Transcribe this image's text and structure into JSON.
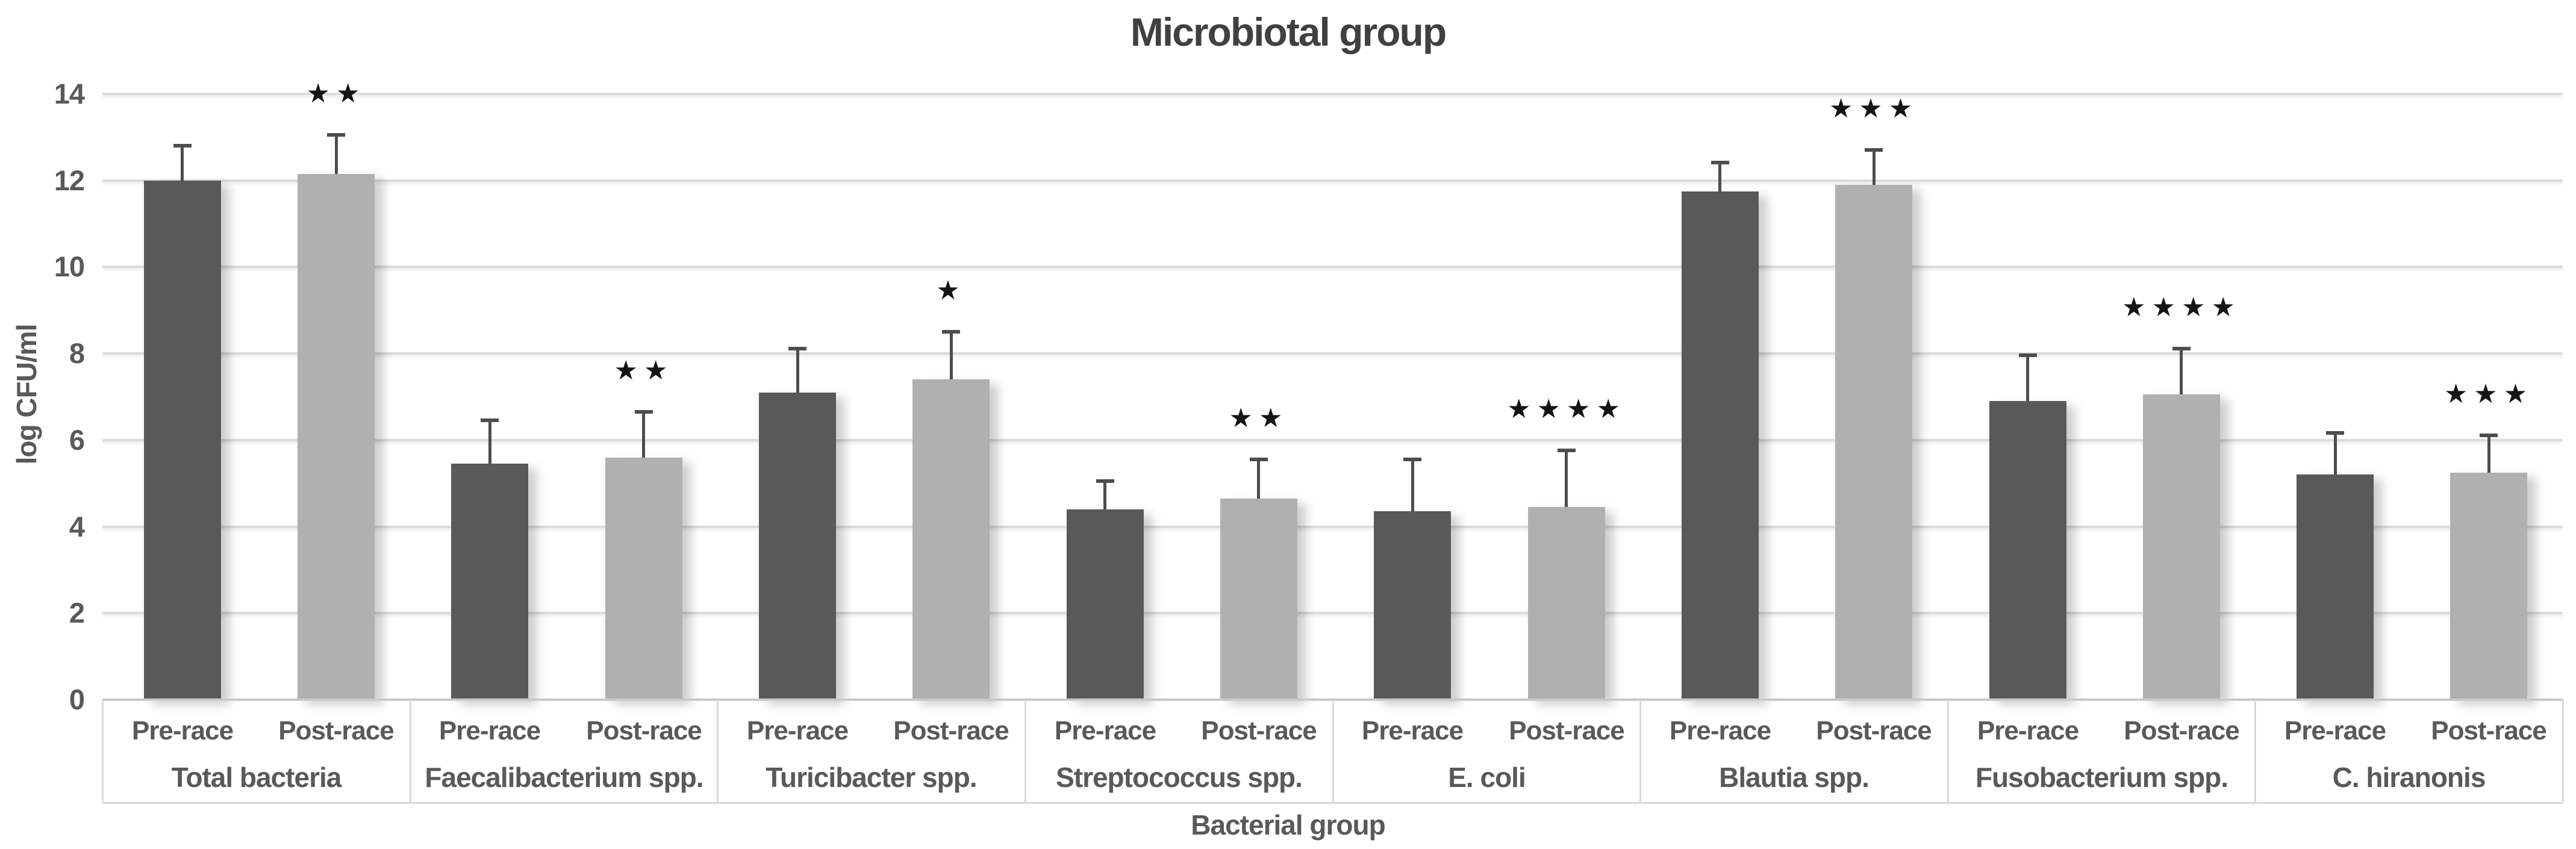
{
  "title": "Microbiotal group",
  "colors": {
    "pre_bar": "#595959",
    "post_bar": "#b0b0b0",
    "error_bar": "#4d4d4d",
    "gridline": "#dcdcdc",
    "axis_line": "#c9c9c9",
    "band_line": "#d9d9d9",
    "label_text": "#595959",
    "title_text": "#404040",
    "significance": "#141414"
  },
  "chart_data": {
    "type": "bar",
    "title": "Microbiotal group",
    "xlabel": "Bacterial group",
    "ylabel": "log CFU/ml",
    "ylim": [
      0,
      14
    ],
    "y_ticks": [
      0,
      2,
      4,
      6,
      8,
      10,
      12,
      14
    ],
    "grid": true,
    "legend": false,
    "error_bars": "positive direction, capped",
    "categories": [
      "Total bacteria",
      "Faecalibacterium spp.",
      "Turicibacter spp.",
      "Streptococcus spp.",
      "E. coli",
      "Blautia spp.",
      "Fusobacterium spp.",
      "C. hiranonis"
    ],
    "series": [
      {
        "name": "Pre-race",
        "values": [
          12.0,
          5.45,
          7.1,
          4.4,
          4.35,
          11.75,
          6.9,
          5.2
        ],
        "error_up": [
          0.85,
          1.05,
          1.05,
          0.7,
          1.25,
          0.7,
          1.1,
          1.0
        ]
      },
      {
        "name": "Post-race",
        "values": [
          12.15,
          5.6,
          7.4,
          4.65,
          4.45,
          11.9,
          7.05,
          5.25
        ],
        "error_up": [
          0.95,
          1.1,
          1.15,
          0.95,
          1.35,
          0.85,
          1.1,
          0.9
        ],
        "significance": [
          "**",
          "**",
          "*",
          "**",
          "****",
          "***",
          "****",
          "***"
        ]
      }
    ]
  }
}
